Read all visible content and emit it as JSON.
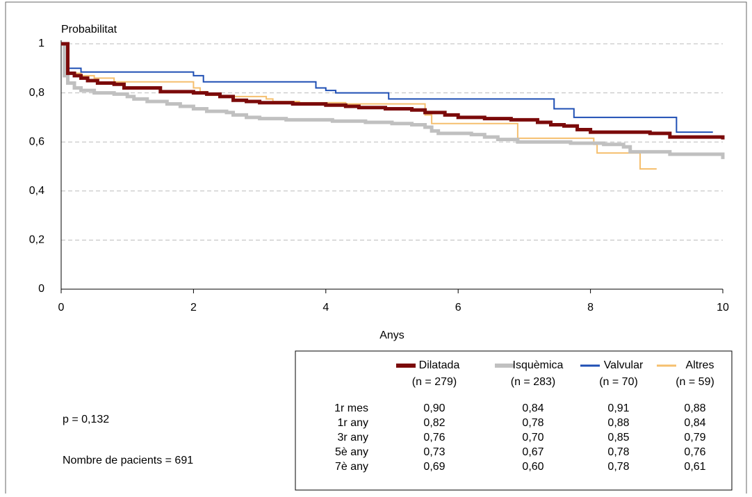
{
  "chart_data": {
    "type": "step",
    "y_label": "Probabilitat",
    "x_label": "Anys",
    "xlim": [
      0,
      10
    ],
    "ylim": [
      0,
      1
    ],
    "xticks": [
      0,
      2,
      4,
      6,
      8,
      10
    ],
    "yticks": [
      0,
      {
        "value": 0.2,
        "label": "0,2"
      },
      {
        "value": 0.4,
        "label": "0,4"
      },
      {
        "value": 0.6,
        "label": "0,6"
      },
      {
        "value": 0.8,
        "label": "0,8"
      },
      1
    ],
    "grid": true,
    "series": [
      {
        "name": "Dilatada",
        "color": "#7b0a0a",
        "x": [
          0,
          0.1,
          0.2,
          0.3,
          0.4,
          0.55,
          0.8,
          0.95,
          1.2,
          1.5,
          2.0,
          2.2,
          2.4,
          2.6,
          2.8,
          3.0,
          3.5,
          4.0,
          4.3,
          4.5,
          4.9,
          5.3,
          5.5,
          5.8,
          6.0,
          6.4,
          6.8,
          7.2,
          7.4,
          7.6,
          7.8,
          8.0,
          8.9,
          9.2,
          9.8,
          10
        ],
        "values": [
          1,
          0.88,
          0.87,
          0.86,
          0.85,
          0.84,
          0.835,
          0.82,
          0.82,
          0.805,
          0.8,
          0.795,
          0.785,
          0.77,
          0.765,
          0.76,
          0.755,
          0.75,
          0.745,
          0.74,
          0.735,
          0.73,
          0.72,
          0.71,
          0.7,
          0.695,
          0.69,
          0.68,
          0.67,
          0.665,
          0.65,
          0.64,
          0.635,
          0.62,
          0.62,
          0.61
        ]
      },
      {
        "name": "Isquèmica",
        "color": "#c0c0c0",
        "x": [
          0,
          0.05,
          0.1,
          0.2,
          0.3,
          0.5,
          0.8,
          1.0,
          1.1,
          1.3,
          1.6,
          1.8,
          2.0,
          2.2,
          2.5,
          2.6,
          2.8,
          3.0,
          3.4,
          4.1,
          4.6,
          5.0,
          5.3,
          5.5,
          5.6,
          5.7,
          6.2,
          6.4,
          6.6,
          6.9,
          7.7,
          8.2,
          8.5,
          8.6,
          9.2,
          9.7,
          10
        ],
        "values": [
          1,
          0.87,
          0.84,
          0.82,
          0.81,
          0.8,
          0.795,
          0.785,
          0.775,
          0.765,
          0.755,
          0.745,
          0.735,
          0.725,
          0.72,
          0.71,
          0.7,
          0.695,
          0.69,
          0.685,
          0.68,
          0.675,
          0.67,
          0.66,
          0.645,
          0.635,
          0.63,
          0.62,
          0.61,
          0.6,
          0.595,
          0.59,
          0.58,
          0.56,
          0.55,
          0.55,
          0.53
        ]
      },
      {
        "name": "Valvular",
        "color": "#1f4fb4",
        "x": [
          0,
          0.05,
          0.3,
          2.0,
          2.15,
          3.85,
          4.0,
          4.15,
          4.95,
          7.45,
          7.65,
          7.75,
          9.3,
          9.4,
          9.85
        ],
        "values": [
          1,
          0.9,
          0.885,
          0.87,
          0.845,
          0.82,
          0.81,
          0.8,
          0.775,
          0.735,
          0.735,
          0.7,
          0.64,
          0.64,
          0.64
        ]
      },
      {
        "name": "Altres",
        "color": "#f5bf6e",
        "x": [
          0,
          0.1,
          0.3,
          0.5,
          0.8,
          1.9,
          2.0,
          2.1,
          2.2,
          2.4,
          3.1,
          3.2,
          3.6,
          4.3,
          5.4,
          5.5,
          5.6,
          6.8,
          6.9,
          8.05,
          8.1,
          8.7,
          8.75,
          9.0
        ],
        "values": [
          1,
          0.88,
          0.87,
          0.86,
          0.845,
          0.845,
          0.82,
          0.805,
          0.79,
          0.785,
          0.775,
          0.765,
          0.76,
          0.755,
          0.755,
          0.71,
          0.675,
          0.675,
          0.615,
          0.59,
          0.555,
          0.555,
          0.49,
          0.49
        ]
      }
    ]
  },
  "table": {
    "counts": [
      "(n = 279)",
      "(n = 283)",
      "(n = 70)",
      "(n = 59)"
    ],
    "rows": [
      [
        "1r mes",
        "0,90",
        "0,84",
        "0,91",
        "0,88"
      ],
      [
        "1r any",
        "0,82",
        "0,78",
        "0,88",
        "0,84"
      ],
      [
        "3r any",
        "0,76",
        "0,70",
        "0,85",
        "0,79"
      ],
      [
        "5è any",
        "0,73",
        "0,67",
        "0,78",
        "0,76"
      ],
      [
        "7è any",
        "0,69",
        "0,60",
        "0,78",
        "0,61"
      ]
    ]
  },
  "notes": {
    "p_value": "p = 0,132",
    "patients": "Nombre de pacients = 691"
  }
}
